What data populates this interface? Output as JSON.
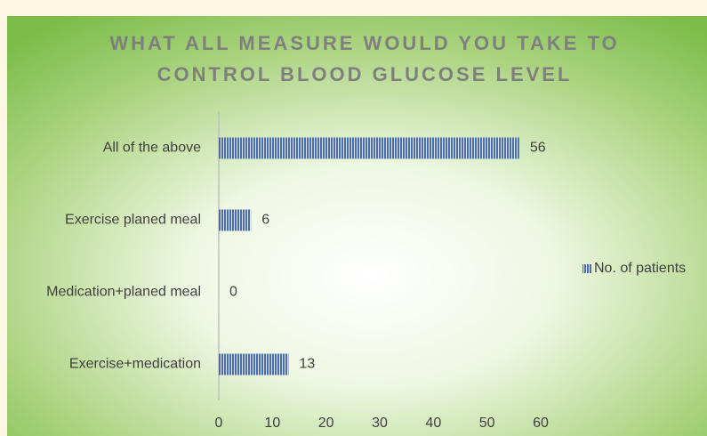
{
  "chart_data": {
    "type": "barh",
    "title": [
      "WHAT ALL MEASURE WOULD YOU TAKE TO",
      "CONTROL BLOOD GLUCOSE LEVEL"
    ],
    "categories": [
      "All of the above",
      "Exercise planed meal",
      "Medication+planed meal",
      "Exercise+medication"
    ],
    "series": [
      {
        "name": "No. of patients",
        "color": "#4a6fa8",
        "values": [
          56,
          6,
          0,
          13
        ]
      }
    ],
    "xlim": [
      0,
      60
    ],
    "xticks": [
      0,
      10,
      20,
      30,
      40,
      50,
      60
    ],
    "grid": false,
    "legend": "right"
  }
}
